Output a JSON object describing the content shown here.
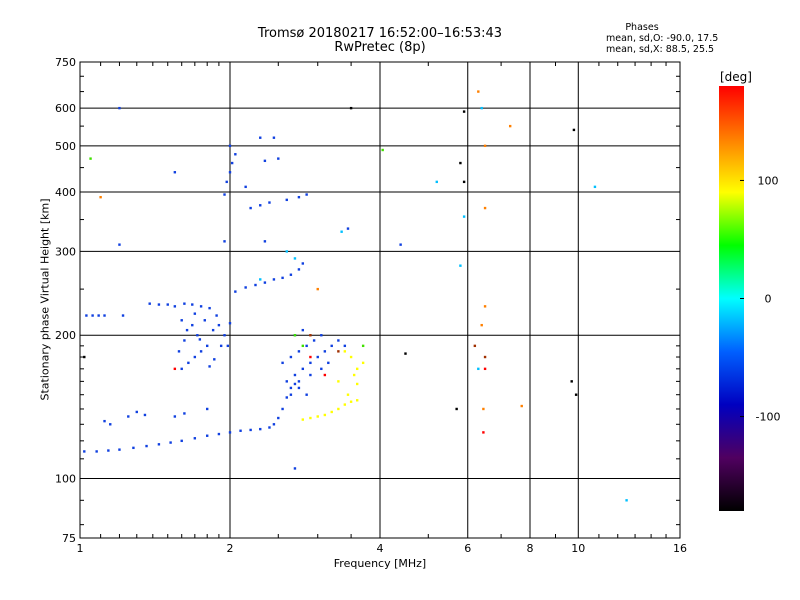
{
  "chart_data": {
    "type": "scatter",
    "title": "Tromsø 20180217 16:52:00–16:53:43",
    "subtitle": "RwPretec (8p)",
    "xlabel": "Frequency [MHz]",
    "ylabel": "Stationary phase Virtual Height [km]",
    "x_scale": "log",
    "y_scale": "log",
    "xlim": [
      1,
      16
    ],
    "ylim": [
      75,
      750
    ],
    "x_ticks": [
      1,
      2,
      4,
      6,
      8,
      10,
      16
    ],
    "y_ticks": [
      75,
      100,
      200,
      300,
      400,
      500,
      600,
      750
    ],
    "x_minor_ticks": [
      1.1,
      1.2,
      1.3,
      1.4,
      1.5,
      1.6,
      1.7,
      1.8,
      1.9,
      2.5,
      3,
      3.5,
      5,
      7,
      9,
      11,
      12,
      13,
      14,
      15
    ],
    "y_minor_ticks": [
      80,
      90,
      110,
      120,
      130,
      140,
      150,
      160,
      170,
      180,
      190,
      250,
      350,
      450,
      550,
      650,
      700
    ],
    "grid": true,
    "phases": {
      "heading": "Phases",
      "line1": "mean, sd,O: -90.0, 17.5",
      "line2": "mean, sd,X:  88.5, 25.5"
    },
    "colorbar": {
      "unit_label": "[deg]",
      "range": [
        -180,
        180
      ],
      "ticks": [
        100,
        0,
        -100
      ],
      "colors": [
        "#ff0000",
        "#ff8000",
        "#ffff00",
        "#00ff00",
        "#00ffff",
        "#0060ff",
        "#0000c0",
        "#500060",
        "#000000"
      ]
    },
    "series": [
      {
        "color": "#1040e0",
        "points": [
          [
            1.02,
            114
          ],
          [
            1.08,
            114
          ],
          [
            1.14,
            114.5
          ],
          [
            1.2,
            115
          ],
          [
            1.28,
            116
          ],
          [
            1.36,
            117
          ],
          [
            1.44,
            118
          ],
          [
            1.52,
            119
          ],
          [
            1.6,
            120
          ],
          [
            1.7,
            121.5
          ],
          [
            1.8,
            123
          ],
          [
            1.9,
            124
          ],
          [
            2.0,
            125
          ],
          [
            2.1,
            126
          ],
          [
            2.2,
            126.5
          ],
          [
            2.3,
            127
          ],
          [
            2.4,
            128
          ],
          [
            2.45,
            130
          ],
          [
            2.5,
            134
          ],
          [
            2.55,
            140
          ],
          [
            2.6,
            148
          ],
          [
            2.65,
            155
          ],
          [
            2.7,
            158
          ],
          [
            2.75,
            160
          ],
          [
            1.03,
            220
          ],
          [
            1.06,
            220
          ],
          [
            1.09,
            220
          ],
          [
            1.12,
            220
          ],
          [
            1.22,
            220
          ],
          [
            1.38,
            233
          ],
          [
            1.44,
            232
          ],
          [
            1.5,
            232
          ],
          [
            1.55,
            230
          ],
          [
            1.62,
            233
          ],
          [
            1.68,
            232
          ],
          [
            1.75,
            230
          ],
          [
            1.82,
            228
          ],
          [
            2.05,
            247
          ],
          [
            2.15,
            252
          ],
          [
            2.25,
            255
          ],
          [
            2.35,
            258
          ],
          [
            2.45,
            262
          ],
          [
            2.55,
            264
          ],
          [
            2.65,
            268
          ],
          [
            2.75,
            275
          ],
          [
            2.8,
            283
          ],
          [
            2.2,
            370
          ],
          [
            2.3,
            375
          ],
          [
            2.4,
            380
          ],
          [
            2.6,
            385
          ],
          [
            2.75,
            390
          ],
          [
            2.85,
            395
          ],
          [
            1.95,
            395
          ],
          [
            1.97,
            420
          ],
          [
            2.0,
            440
          ],
          [
            2.02,
            460
          ],
          [
            2.05,
            480
          ],
          [
            2.0,
            500
          ],
          [
            2.15,
            410
          ],
          [
            2.35,
            465
          ],
          [
            2.5,
            470
          ],
          [
            2.3,
            520
          ],
          [
            2.45,
            520
          ],
          [
            1.6,
            170
          ],
          [
            1.65,
            175
          ],
          [
            1.7,
            180
          ],
          [
            1.75,
            185
          ],
          [
            1.8,
            190
          ],
          [
            1.62,
            195
          ],
          [
            1.72,
            200
          ],
          [
            1.85,
            205
          ],
          [
            1.9,
            210
          ],
          [
            1.95,
            200
          ],
          [
            1.68,
            210
          ],
          [
            1.78,
            215
          ],
          [
            1.92,
            190
          ],
          [
            1.58,
            185
          ],
          [
            1.64,
            205
          ],
          [
            1.74,
            196
          ],
          [
            1.86,
            178
          ],
          [
            1.98,
            190
          ],
          [
            1.82,
            172
          ],
          [
            1.6,
            215
          ],
          [
            1.7,
            222
          ],
          [
            1.88,
            220
          ],
          [
            2.0,
            212
          ],
          [
            2.6,
            160
          ],
          [
            2.7,
            165
          ],
          [
            2.8,
            170
          ],
          [
            2.9,
            175
          ],
          [
            3.0,
            180
          ],
          [
            3.1,
            185
          ],
          [
            3.2,
            190
          ],
          [
            2.55,
            175
          ],
          [
            2.65,
            180
          ],
          [
            2.75,
            185
          ],
          [
            2.85,
            190
          ],
          [
            2.95,
            195
          ],
          [
            3.05,
            200
          ],
          [
            2.7,
            200
          ],
          [
            2.8,
            205
          ],
          [
            3.3,
            195
          ],
          [
            3.4,
            190
          ],
          [
            2.9,
            165
          ],
          [
            3.05,
            170
          ],
          [
            3.15,
            175
          ],
          [
            2.65,
            150
          ],
          [
            2.75,
            155
          ],
          [
            2.85,
            150
          ],
          [
            1.25,
            135
          ],
          [
            1.3,
            138
          ],
          [
            1.35,
            136
          ],
          [
            1.12,
            132
          ],
          [
            1.15,
            130
          ],
          [
            1.55,
            135
          ],
          [
            1.62,
            137
          ],
          [
            1.8,
            140
          ],
          [
            1.2,
            310
          ],
          [
            1.55,
            440
          ],
          [
            1.2,
            600
          ],
          [
            2.7,
            105
          ],
          [
            1.95,
            315
          ],
          [
            2.35,
            315
          ],
          [
            3.45,
            335
          ],
          [
            4.4,
            310
          ]
        ]
      },
      {
        "color": "#00c0ff",
        "points": [
          [
            2.3,
            262
          ],
          [
            2.6,
            300
          ],
          [
            2.7,
            290
          ],
          [
            3.35,
            330
          ],
          [
            5.2,
            420
          ],
          [
            5.8,
            280
          ],
          [
            5.9,
            355
          ],
          [
            10.8,
            410
          ],
          [
            12.5,
            90
          ],
          [
            6.4,
            600
          ],
          [
            6.3,
            170
          ]
        ]
      },
      {
        "color": "#ffff00",
        "points": [
          [
            2.8,
            133
          ],
          [
            2.9,
            134
          ],
          [
            3.0,
            135
          ],
          [
            3.1,
            136
          ],
          [
            3.2,
            138
          ],
          [
            3.3,
            140
          ],
          [
            3.4,
            143
          ],
          [
            3.5,
            145
          ],
          [
            3.6,
            146
          ],
          [
            3.55,
            165
          ],
          [
            3.6,
            170
          ],
          [
            3.7,
            175
          ],
          [
            3.5,
            180
          ],
          [
            3.4,
            185
          ],
          [
            3.6,
            158
          ],
          [
            3.45,
            150
          ],
          [
            3.3,
            160
          ]
        ]
      },
      {
        "color": "#40e000",
        "points": [
          [
            1.05,
            470
          ],
          [
            2.7,
            200
          ],
          [
            2.8,
            190
          ],
          [
            3.7,
            190
          ],
          [
            4.05,
            490
          ]
        ]
      },
      {
        "color": "#ff8000",
        "points": [
          [
            6.3,
            650
          ],
          [
            6.5,
            500
          ],
          [
            6.5,
            370
          ],
          [
            6.5,
            230
          ],
          [
            6.4,
            210
          ],
          [
            7.3,
            550
          ],
          [
            6.45,
            140
          ],
          [
            7.7,
            142
          ],
          [
            1.1,
            390
          ],
          [
            3.0,
            250
          ]
        ]
      },
      {
        "color": "#ff0000",
        "points": [
          [
            1.55,
            170
          ],
          [
            2.9,
            180
          ],
          [
            3.1,
            165
          ],
          [
            6.45,
            125
          ],
          [
            6.5,
            170
          ]
        ]
      },
      {
        "color": "#a03000",
        "points": [
          [
            6.2,
            190
          ],
          [
            6.5,
            180
          ],
          [
            2.9,
            200
          ],
          [
            3.3,
            185
          ]
        ]
      },
      {
        "color": "#000000",
        "points": [
          [
            5.9,
            590
          ],
          [
            5.8,
            460
          ],
          [
            5.9,
            420
          ],
          [
            5.7,
            140
          ],
          [
            9.8,
            540
          ],
          [
            9.9,
            150
          ],
          [
            9.7,
            160
          ],
          [
            3.5,
            600
          ],
          [
            1.02,
            180
          ],
          [
            4.5,
            183
          ]
        ]
      }
    ]
  }
}
